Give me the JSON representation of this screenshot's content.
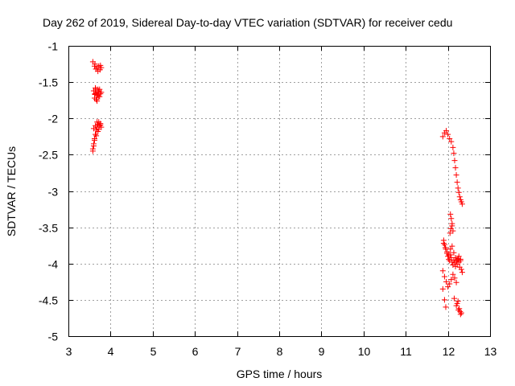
{
  "chart_data": {
    "type": "scatter",
    "title": "Day 262 of 2019, Sidereal Day-to-day VTEC variation (SDTVAR) for receiver cedu",
    "xlabel": "GPS time / hours",
    "ylabel": "SDTVAR / TECUs",
    "xlim": [
      3,
      13
    ],
    "ylim": [
      -5,
      -1
    ],
    "xticks": [
      3,
      4,
      5,
      6,
      7,
      8,
      9,
      10,
      11,
      12,
      13
    ],
    "yticks": [
      -5,
      -4.5,
      -4,
      -3.5,
      -3,
      -2.5,
      -2,
      -1.5,
      -1
    ],
    "grid": true,
    "marker": "+",
    "color": "#ff0000",
    "series": [
      {
        "name": "SDTVAR",
        "x": [
          3.58,
          3.62,
          3.65,
          3.68,
          3.72,
          3.75,
          3.78,
          3.63,
          3.7,
          3.76,
          3.6,
          3.63,
          3.65,
          3.68,
          3.7,
          3.72,
          3.74,
          3.76,
          3.78,
          3.62,
          3.66,
          3.7,
          3.74,
          3.64,
          3.68,
          3.72,
          3.66,
          3.7,
          3.63,
          3.58,
          3.6,
          3.62,
          3.64,
          3.66,
          3.68,
          3.7,
          3.72,
          3.74,
          3.76,
          3.78,
          3.6,
          3.64,
          3.68,
          3.72,
          3.76,
          3.66,
          3.7,
          3.62,
          3.6,
          3.58,
          11.88,
          11.92,
          11.96,
          12.0,
          12.04,
          12.08,
          12.12,
          12.14,
          12.16,
          12.18,
          12.2,
          12.22,
          12.24,
          12.26,
          12.28,
          12.3,
          12.32,
          12.34,
          12.06,
          12.08,
          12.1,
          12.07,
          12.05,
          12.1,
          12.12,
          11.9,
          11.92,
          11.95,
          11.98,
          12.0,
          12.02,
          12.04,
          12.06,
          12.08,
          12.1,
          12.12,
          12.14,
          12.16,
          12.18,
          12.2,
          12.22,
          12.24,
          12.26,
          12.28,
          12.3,
          12.32,
          12.34,
          11.9,
          11.94,
          11.98,
          12.02,
          12.06,
          12.1,
          12.14,
          12.18,
          12.22,
          12.26,
          12.3,
          11.88,
          11.92,
          11.96,
          12.0,
          12.04,
          12.08,
          12.12,
          12.16,
          12.2,
          11.88,
          11.92,
          11.95,
          12.15,
          12.2,
          12.25,
          12.3,
          12.22,
          12.27,
          12.32,
          12.24,
          12.29
        ],
        "y": [
          -1.22,
          -1.28,
          -1.32,
          -1.3,
          -1.28,
          -1.33,
          -1.3,
          -1.25,
          -1.35,
          -1.27,
          -1.62,
          -1.66,
          -1.6,
          -1.68,
          -1.64,
          -1.62,
          -1.7,
          -1.66,
          -1.64,
          -1.72,
          -1.74,
          -1.68,
          -1.6,
          -1.58,
          -1.76,
          -1.7,
          -1.65,
          -1.6,
          -1.67,
          -2.42,
          -2.35,
          -2.28,
          -2.22,
          -2.16,
          -2.12,
          -2.08,
          -2.05,
          -2.1,
          -2.07,
          -2.12,
          -2.14,
          -2.1,
          -2.05,
          -2.15,
          -2.09,
          -2.24,
          -2.18,
          -2.3,
          -2.38,
          -2.45,
          -2.25,
          -2.2,
          -2.17,
          -2.22,
          -2.28,
          -2.32,
          -2.4,
          -2.48,
          -2.58,
          -2.68,
          -2.78,
          -2.88,
          -2.96,
          -3.02,
          -3.08,
          -3.12,
          -3.15,
          -3.18,
          -3.32,
          -3.38,
          -3.45,
          -3.52,
          -3.58,
          -3.48,
          -3.55,
          -3.68,
          -3.74,
          -3.8,
          -3.86,
          -3.9,
          -3.94,
          -3.96,
          -3.88,
          -3.92,
          -3.98,
          -4.02,
          -3.95,
          -3.99,
          -4.04,
          -3.97,
          -4.01,
          -3.93,
          -3.98,
          -4.05,
          -3.96,
          -4.08,
          -4.12,
          -3.72,
          -3.78,
          -3.84,
          -3.88,
          -3.8,
          -3.76,
          -3.85,
          -3.92,
          -3.95,
          -3.9,
          -3.94,
          -4.1,
          -4.18,
          -4.25,
          -4.32,
          -4.28,
          -4.22,
          -4.15,
          -4.2,
          -4.26,
          -4.35,
          -4.5,
          -4.6,
          -4.48,
          -4.58,
          -4.64,
          -4.7,
          -4.55,
          -4.62,
          -4.68,
          -4.52,
          -4.66
        ]
      }
    ]
  }
}
